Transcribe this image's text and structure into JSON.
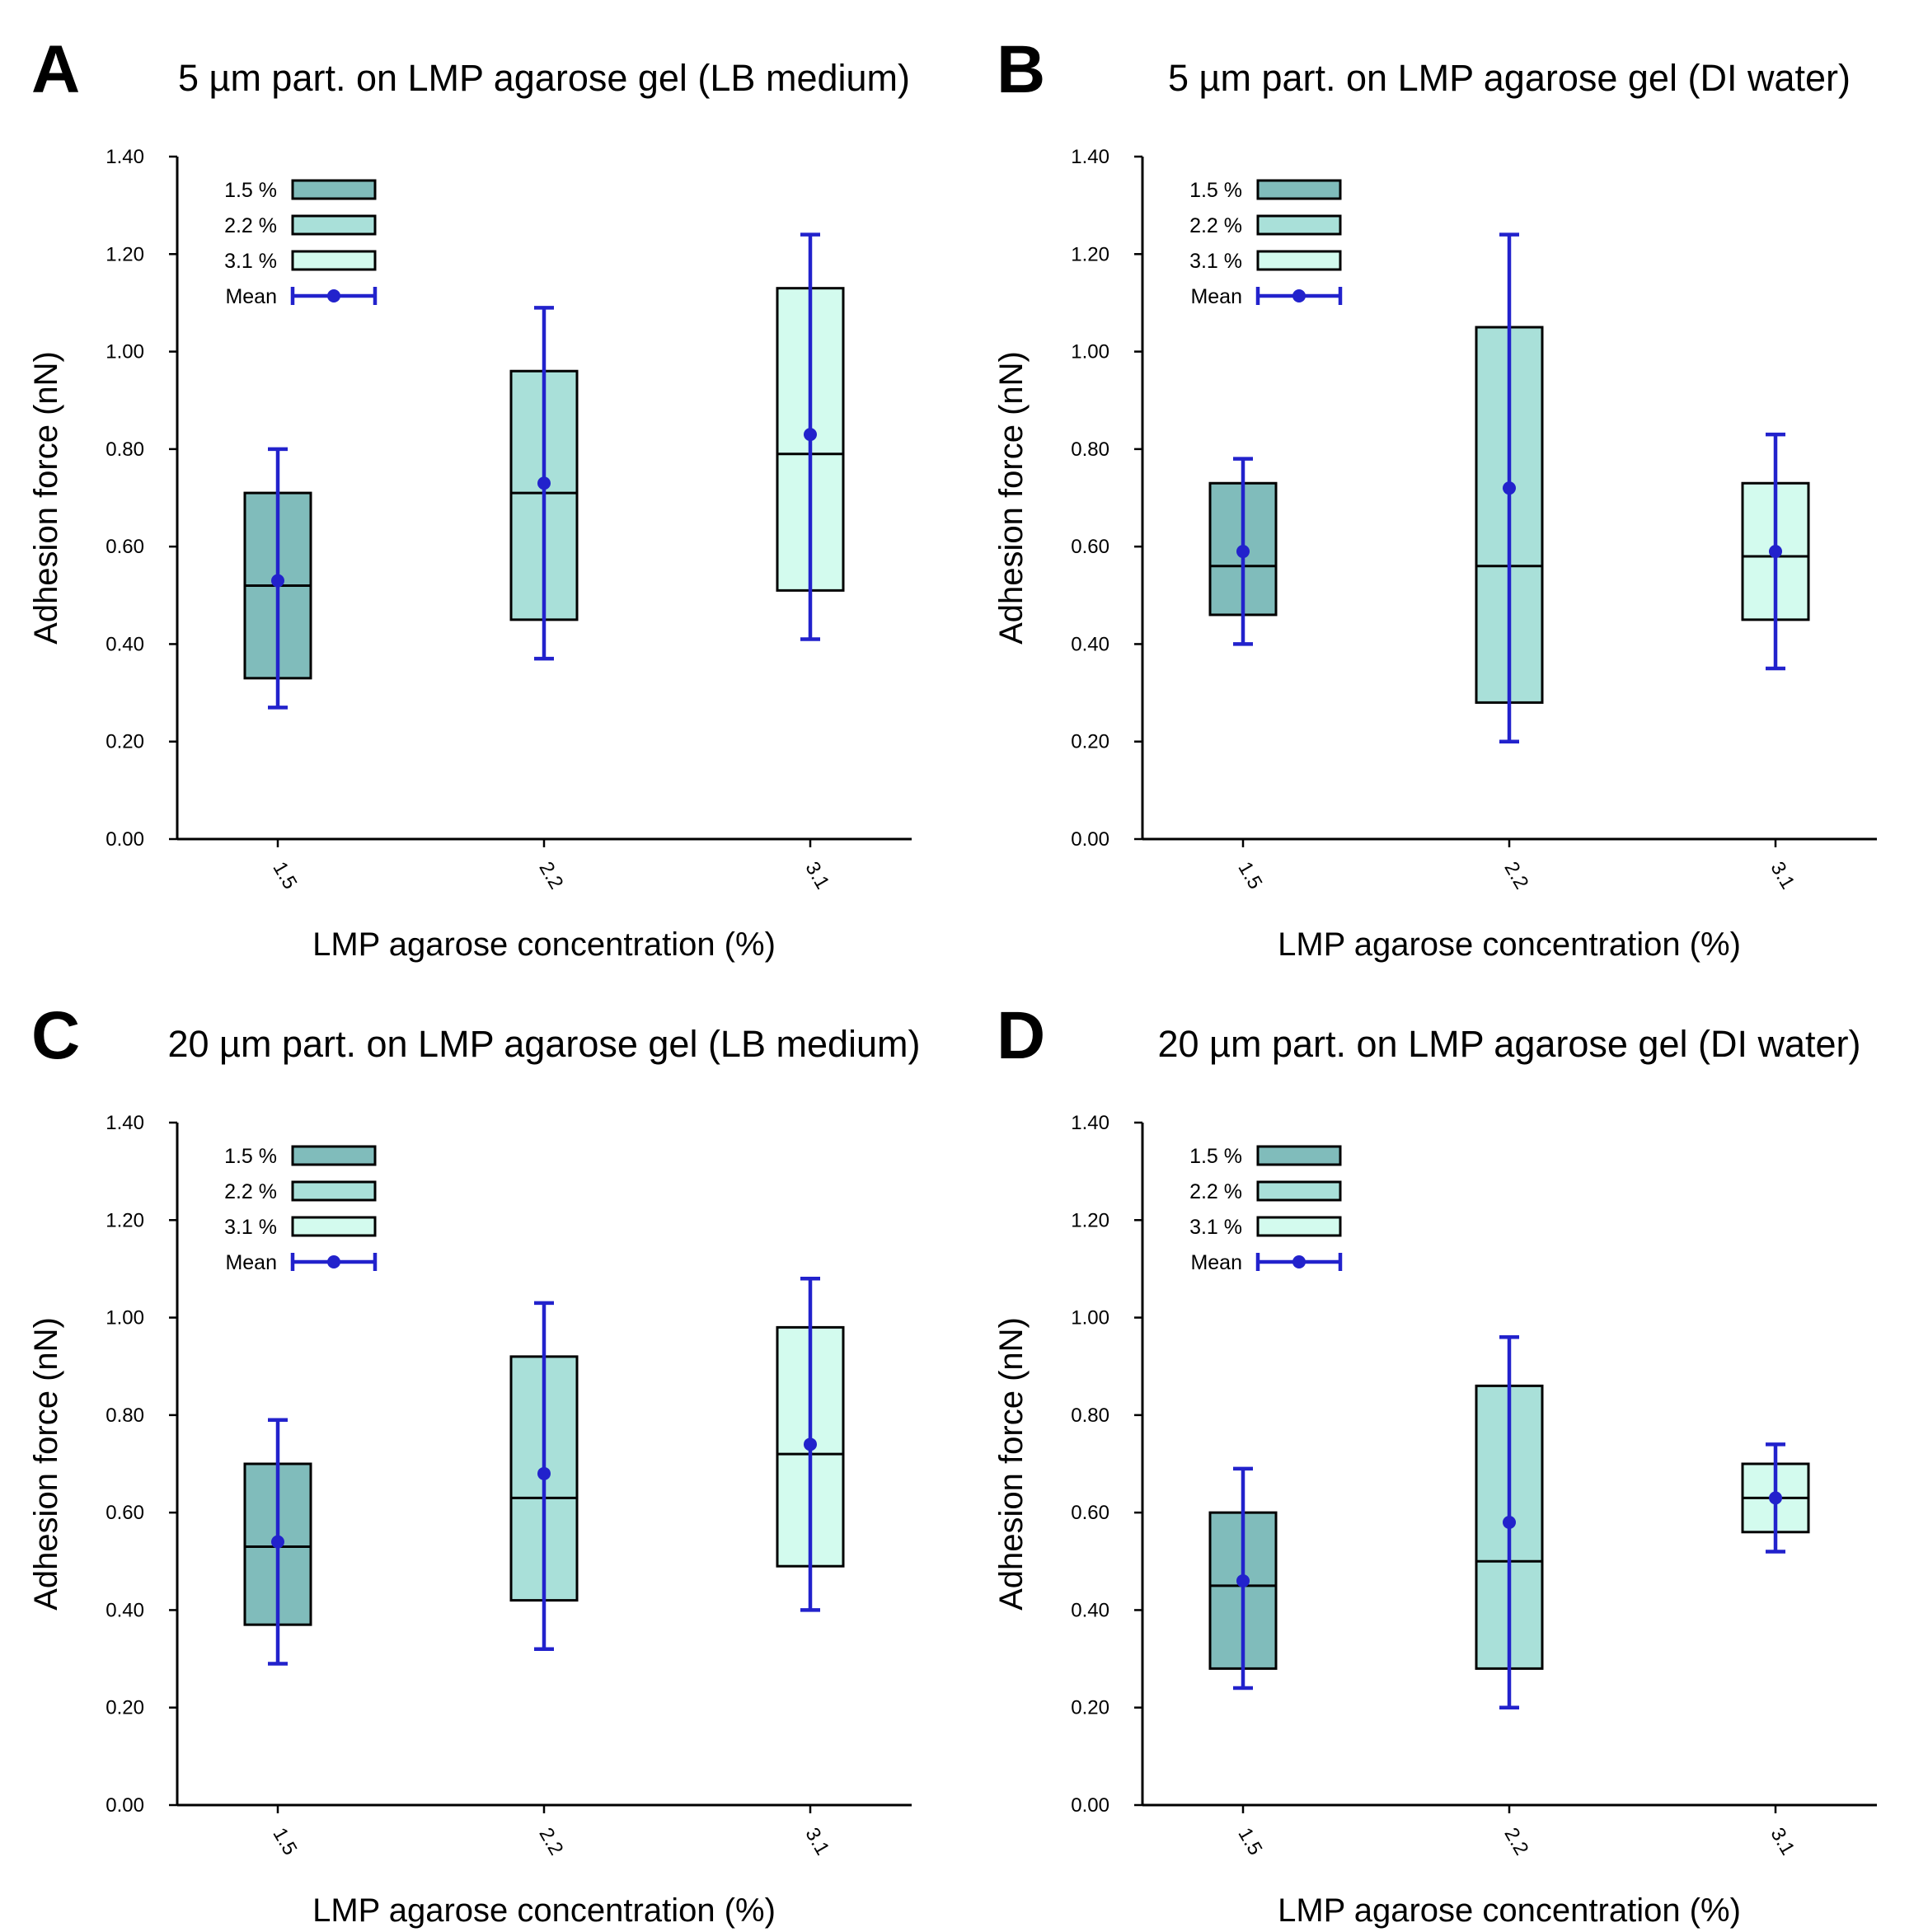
{
  "colors": {
    "box_1_5": "#80bcbb",
    "box_2_2": "#a9e0d9",
    "box_3_1": "#d3fbee",
    "mean": "#2222cc",
    "outline": "#000000"
  },
  "legend": {
    "entries": [
      "1.5 %",
      "2.2 %",
      "3.1 %"
    ],
    "mean_label": "Mean"
  },
  "chart_data": [
    {
      "panel": "A",
      "type": "box",
      "title": "5 µm part. on LMP agarose gel (LB medium)",
      "xlabel": "LMP agarose concentration (%)",
      "ylabel": "Adhesion force (nN)",
      "ylim": [
        0,
        1.4
      ],
      "yticks": [
        "0.00",
        "0.20",
        "0.40",
        "0.60",
        "0.80",
        "1.00",
        "1.20",
        "1.40"
      ],
      "categories": [
        "1.5",
        "2.2",
        "3.1"
      ],
      "series": [
        {
          "name": "1.5 %",
          "q1": 0.33,
          "median": 0.52,
          "q3": 0.71,
          "mean": 0.53,
          "err_low": 0.27,
          "err_high": 0.8
        },
        {
          "name": "2.2 %",
          "q1": 0.45,
          "median": 0.71,
          "q3": 0.96,
          "mean": 0.73,
          "err_low": 0.37,
          "err_high": 1.09
        },
        {
          "name": "3.1 %",
          "q1": 0.51,
          "median": 0.79,
          "q3": 1.13,
          "mean": 0.83,
          "err_low": 0.41,
          "err_high": 1.24
        }
      ]
    },
    {
      "panel": "B",
      "type": "box",
      "title": "5 µm part. on LMP agarose gel (DI water)",
      "xlabel": "LMP agarose concentration (%)",
      "ylabel": "Adhesion force (nN)",
      "ylim": [
        0,
        1.4
      ],
      "yticks": [
        "0.00",
        "0.20",
        "0.40",
        "0.60",
        "0.80",
        "1.00",
        "1.20",
        "1.40"
      ],
      "categories": [
        "1.5",
        "2.2",
        "3.1"
      ],
      "series": [
        {
          "name": "1.5 %",
          "q1": 0.46,
          "median": 0.56,
          "q3": 0.73,
          "mean": 0.59,
          "err_low": 0.4,
          "err_high": 0.78
        },
        {
          "name": "2.2 %",
          "q1": 0.28,
          "median": 0.56,
          "q3": 1.05,
          "mean": 0.72,
          "err_low": 0.2,
          "err_high": 1.24
        },
        {
          "name": "3.1 %",
          "q1": 0.45,
          "median": 0.58,
          "q3": 0.73,
          "mean": 0.59,
          "err_low": 0.35,
          "err_high": 0.83
        }
      ]
    },
    {
      "panel": "C",
      "type": "box",
      "title": "20 µm part. on LMP agarose gel (LB medium)",
      "xlabel": "LMP agarose concentration (%)",
      "ylabel": "Adhesion force (nN)",
      "ylim": [
        0,
        1.4
      ],
      "yticks": [
        "0.00",
        "0.20",
        "0.40",
        "0.60",
        "0.80",
        "1.00",
        "1.20",
        "1.40"
      ],
      "categories": [
        "1.5",
        "2.2",
        "3.1"
      ],
      "series": [
        {
          "name": "1.5 %",
          "q1": 0.37,
          "median": 0.53,
          "q3": 0.7,
          "mean": 0.54,
          "err_low": 0.29,
          "err_high": 0.79
        },
        {
          "name": "2.2 %",
          "q1": 0.42,
          "median": 0.63,
          "q3": 0.92,
          "mean": 0.68,
          "err_low": 0.32,
          "err_high": 1.03
        },
        {
          "name": "3.1 %",
          "q1": 0.49,
          "median": 0.72,
          "q3": 0.98,
          "mean": 0.74,
          "err_low": 0.4,
          "err_high": 1.08
        }
      ]
    },
    {
      "panel": "D",
      "type": "box",
      "title": "20 µm part. on LMP agarose gel (DI water)",
      "xlabel": "LMP agarose concentration (%)",
      "ylabel": "Adhesion force (nN)",
      "ylim": [
        0,
        1.4
      ],
      "yticks": [
        "0.00",
        "0.20",
        "0.40",
        "0.60",
        "0.80",
        "1.00",
        "1.20",
        "1.40"
      ],
      "categories": [
        "1.5",
        "2.2",
        "3.1"
      ],
      "series": [
        {
          "name": "1.5 %",
          "q1": 0.28,
          "median": 0.45,
          "q3": 0.6,
          "mean": 0.46,
          "err_low": 0.24,
          "err_high": 0.69
        },
        {
          "name": "2.2 %",
          "q1": 0.28,
          "median": 0.5,
          "q3": 0.86,
          "mean": 0.58,
          "err_low": 0.2,
          "err_high": 0.96
        },
        {
          "name": "3.1 %",
          "q1": 0.56,
          "median": 0.63,
          "q3": 0.7,
          "mean": 0.63,
          "err_low": 0.52,
          "err_high": 0.74
        }
      ]
    }
  ]
}
